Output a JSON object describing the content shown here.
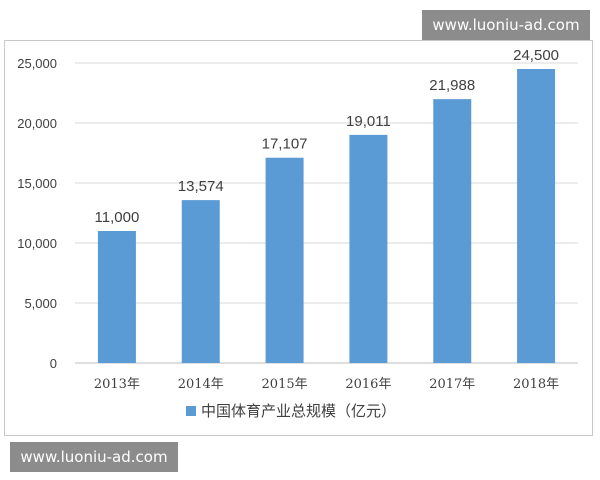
{
  "chart_data": {
    "type": "bar",
    "categories": [
      "2013年",
      "2014年",
      "2015年",
      "2016年",
      "2017年",
      "2018年"
    ],
    "series": [
      {
        "name": "中国体育产业总规模（亿元）",
        "values": [
          11000,
          13574,
          17107,
          19011,
          21988,
          24500
        ],
        "color": "#5b9bd5"
      }
    ],
    "data_labels": [
      "11,000",
      "13,574",
      "17,107",
      "19,011",
      "21,988",
      "24,500"
    ],
    "y_ticks": [
      "0",
      "5,000",
      "10,000",
      "15,000",
      "20,000",
      "25,000"
    ],
    "ylim": [
      0,
      25000
    ],
    "grid": true,
    "legend_position": "bottom"
  },
  "watermarks": [
    "www.luoniu-ad.com",
    "www.luoniu-ad.com"
  ]
}
